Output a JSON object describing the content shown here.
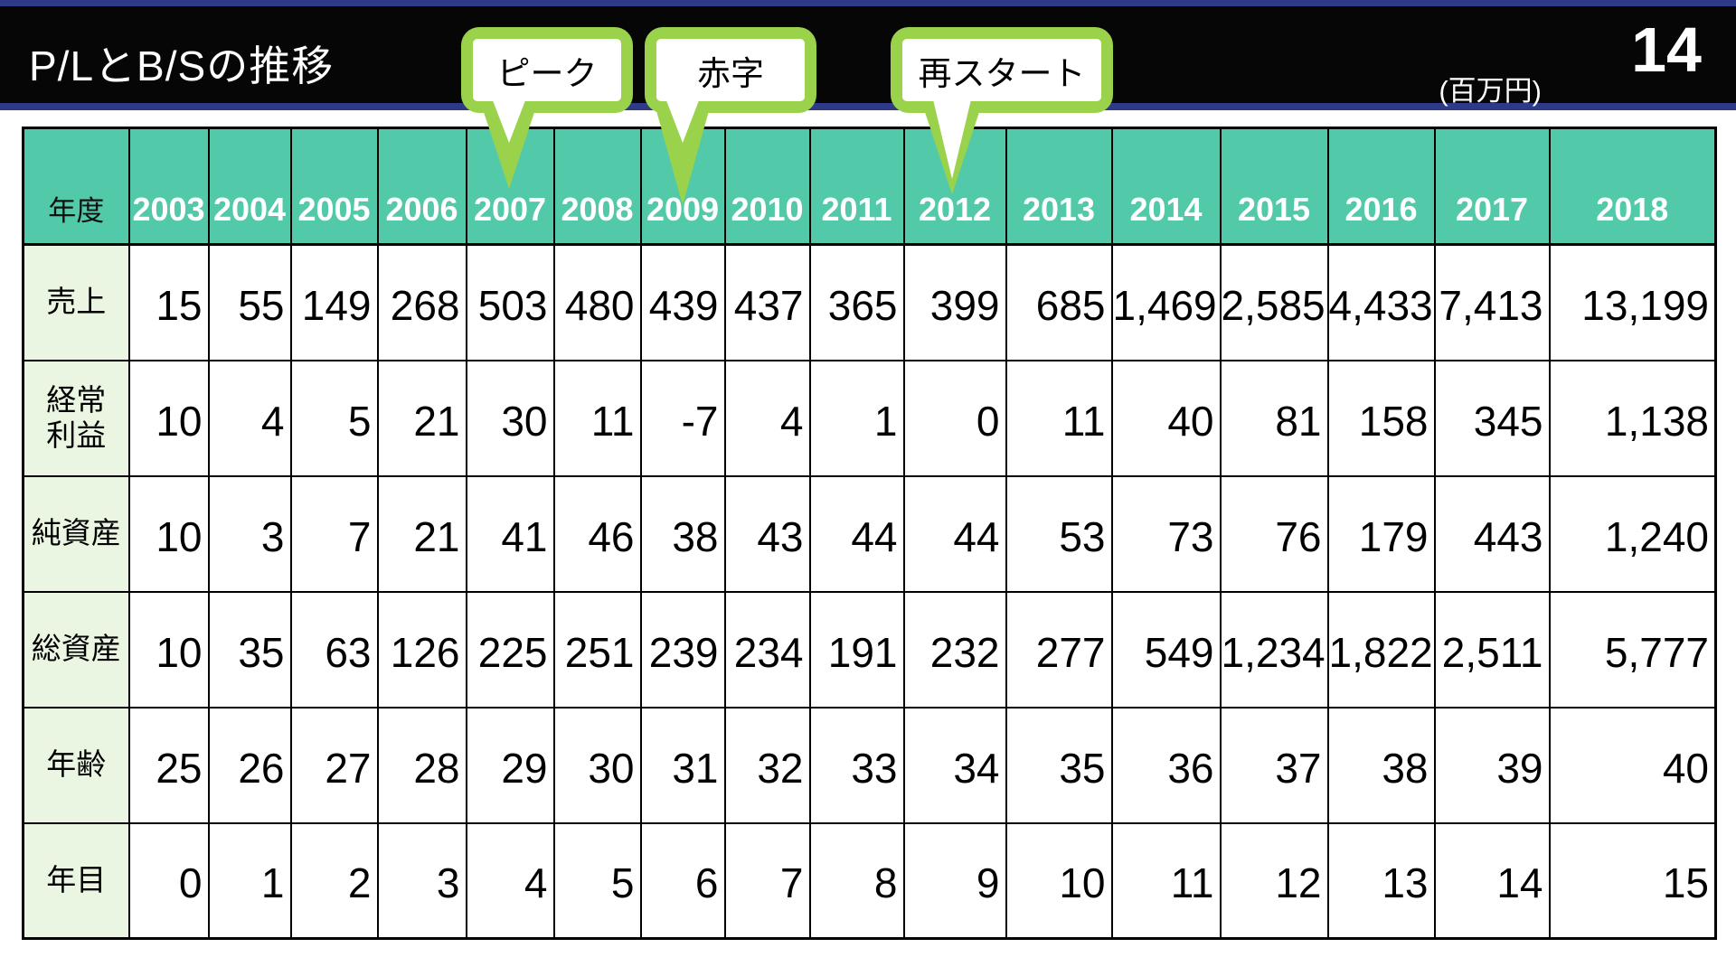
{
  "header": {
    "title": "P/LとB/Sの推移",
    "unit": "(百万円)",
    "page_number": "14"
  },
  "callouts": [
    {
      "label": "ピーク",
      "target_year": "2007"
    },
    {
      "label": "赤字",
      "target_year": "2009"
    },
    {
      "label": "再スタート",
      "target_year": "2012"
    }
  ],
  "table": {
    "corner_label": "年度",
    "years": [
      "2003",
      "2004",
      "2005",
      "2006",
      "2007",
      "2008",
      "2009",
      "2010",
      "2011",
      "2012",
      "2013",
      "2014",
      "2015",
      "2016",
      "2017",
      "2018"
    ],
    "rows": [
      {
        "label": "売上",
        "values": [
          "15",
          "55",
          "149",
          "268",
          "503",
          "480",
          "439",
          "437",
          "365",
          "399",
          "685",
          "1,469",
          "2,585",
          "4,433",
          "7,413",
          "13,199"
        ]
      },
      {
        "label": "経常\n利益",
        "values": [
          "10",
          "4",
          "5",
          "21",
          "30",
          "11",
          "-7",
          "4",
          "1",
          "0",
          "11",
          "40",
          "81",
          "158",
          "345",
          "1,138"
        ]
      },
      {
        "label": "純資産",
        "values": [
          "10",
          "3",
          "7",
          "21",
          "41",
          "46",
          "38",
          "43",
          "44",
          "44",
          "53",
          "73",
          "76",
          "179",
          "443",
          "1,240"
        ]
      },
      {
        "label": "総資産",
        "values": [
          "10",
          "35",
          "63",
          "126",
          "225",
          "251",
          "239",
          "234",
          "191",
          "232",
          "277",
          "549",
          "1,234",
          "1,822",
          "2,511",
          "5,777"
        ]
      },
      {
        "label": "年齢",
        "values": [
          "25",
          "26",
          "27",
          "28",
          "29",
          "30",
          "31",
          "32",
          "33",
          "34",
          "35",
          "36",
          "37",
          "38",
          "39",
          "40"
        ]
      },
      {
        "label": "年目",
        "values": [
          "0",
          "1",
          "2",
          "3",
          "4",
          "5",
          "6",
          "7",
          "8",
          "9",
          "10",
          "11",
          "12",
          "13",
          "14",
          "15"
        ]
      }
    ]
  },
  "colors": {
    "accent_green": "#9ad24c",
    "header_teal": "#52c9a8",
    "label_bg": "#eaf6e2",
    "navy": "#2e3a88",
    "bar_black": "#060606"
  }
}
